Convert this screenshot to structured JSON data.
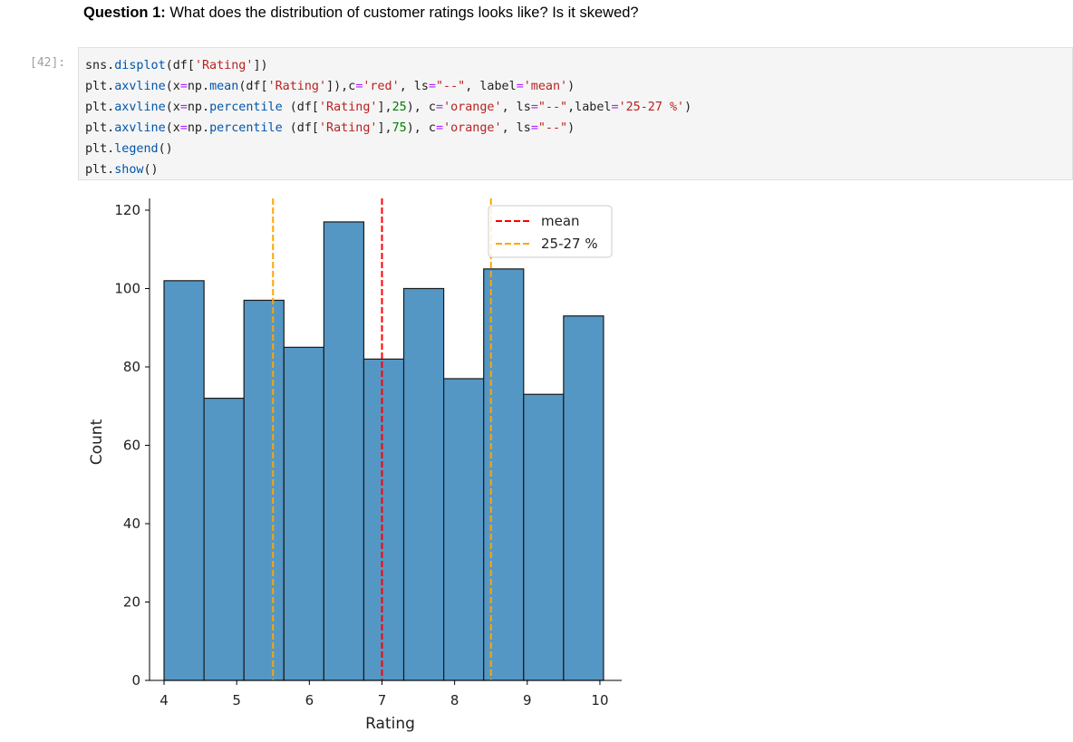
{
  "markdown": {
    "bold": "Question 1:",
    "rest": " What does the distribution of customer ratings looks like? Is it skewed?"
  },
  "cell": {
    "prompt": "[42]:",
    "lines": [
      [
        {
          "t": "sns.",
          "c": "k-var"
        },
        {
          "t": "displot",
          "c": "k-fn"
        },
        {
          "t": "(df[",
          "c": "k-var"
        },
        {
          "t": "'Rating'",
          "c": "k-str"
        },
        {
          "t": "])",
          "c": "k-var"
        }
      ],
      [
        {
          "t": "plt.",
          "c": "k-var"
        },
        {
          "t": "axvline",
          "c": "k-fn"
        },
        {
          "t": "(x",
          "c": "k-var"
        },
        {
          "t": "=",
          "c": "k-op"
        },
        {
          "t": "np.",
          "c": "k-var"
        },
        {
          "t": "mean",
          "c": "k-fn"
        },
        {
          "t": "(df[",
          "c": "k-var"
        },
        {
          "t": "'Rating'",
          "c": "k-str"
        },
        {
          "t": "]),c",
          "c": "k-var"
        },
        {
          "t": "=",
          "c": "k-op"
        },
        {
          "t": "'red'",
          "c": "k-str"
        },
        {
          "t": ", ls",
          "c": "k-var"
        },
        {
          "t": "=",
          "c": "k-op"
        },
        {
          "t": "\"--\"",
          "c": "k-str"
        },
        {
          "t": ", label",
          "c": "k-var"
        },
        {
          "t": "=",
          "c": "k-op"
        },
        {
          "t": "'mean'",
          "c": "k-str"
        },
        {
          "t": ")",
          "c": "k-var"
        }
      ],
      [
        {
          "t": "plt.",
          "c": "k-var"
        },
        {
          "t": "axvline",
          "c": "k-fn"
        },
        {
          "t": "(x",
          "c": "k-var"
        },
        {
          "t": "=",
          "c": "k-op"
        },
        {
          "t": "np.",
          "c": "k-var"
        },
        {
          "t": "percentile",
          "c": "k-fn"
        },
        {
          "t": " (df[",
          "c": "k-var"
        },
        {
          "t": "'Rating'",
          "c": "k-str"
        },
        {
          "t": "],",
          "c": "k-var"
        },
        {
          "t": "25",
          "c": "k-num"
        },
        {
          "t": "), c",
          "c": "k-var"
        },
        {
          "t": "=",
          "c": "k-op"
        },
        {
          "t": "'orange'",
          "c": "k-str"
        },
        {
          "t": ", ls",
          "c": "k-var"
        },
        {
          "t": "=",
          "c": "k-op"
        },
        {
          "t": "\"--\"",
          "c": "k-str"
        },
        {
          "t": ",label",
          "c": "k-var"
        },
        {
          "t": "=",
          "c": "k-op"
        },
        {
          "t": "'25-27 %'",
          "c": "k-str"
        },
        {
          "t": ")",
          "c": "k-var"
        }
      ],
      [
        {
          "t": "plt.",
          "c": "k-var"
        },
        {
          "t": "axvline",
          "c": "k-fn"
        },
        {
          "t": "(x",
          "c": "k-var"
        },
        {
          "t": "=",
          "c": "k-op"
        },
        {
          "t": "np.",
          "c": "k-var"
        },
        {
          "t": "percentile",
          "c": "k-fn"
        },
        {
          "t": " (df[",
          "c": "k-var"
        },
        {
          "t": "'Rating'",
          "c": "k-str"
        },
        {
          "t": "],",
          "c": "k-var"
        },
        {
          "t": "75",
          "c": "k-num"
        },
        {
          "t": "), c",
          "c": "k-var"
        },
        {
          "t": "=",
          "c": "k-op"
        },
        {
          "t": "'orange'",
          "c": "k-str"
        },
        {
          "t": ", ls",
          "c": "k-var"
        },
        {
          "t": "=",
          "c": "k-op"
        },
        {
          "t": "\"--\"",
          "c": "k-str"
        },
        {
          "t": ")",
          "c": "k-var"
        }
      ],
      [
        {
          "t": "plt.",
          "c": "k-var"
        },
        {
          "t": "legend",
          "c": "k-fn"
        },
        {
          "t": "()",
          "c": "k-var"
        }
      ],
      [
        {
          "t": "plt.",
          "c": "k-var"
        },
        {
          "t": "show",
          "c": "k-fn"
        },
        {
          "t": "()",
          "c": "k-var"
        }
      ]
    ]
  },
  "chart_data": {
    "type": "bar",
    "xlabel": "Rating",
    "ylabel": "Count",
    "xlim": [
      3.8,
      10.3
    ],
    "ylim": [
      0,
      123
    ],
    "xticks": [
      "4",
      "5",
      "6",
      "7",
      "8",
      "9",
      "10"
    ],
    "yticks": [
      "0",
      "20",
      "40",
      "60",
      "80",
      "100",
      "120"
    ],
    "bins": [
      {
        "x0": 4.0,
        "x1": 4.55,
        "count": 102
      },
      {
        "x0": 4.55,
        "x1": 5.1,
        "count": 72
      },
      {
        "x0": 5.1,
        "x1": 5.65,
        "count": 97
      },
      {
        "x0": 5.65,
        "x1": 6.2,
        "count": 85
      },
      {
        "x0": 6.2,
        "x1": 6.75,
        "count": 117
      },
      {
        "x0": 6.75,
        "x1": 7.3,
        "count": 82
      },
      {
        "x0": 7.3,
        "x1": 7.85,
        "count": 100
      },
      {
        "x0": 7.85,
        "x1": 8.4,
        "count": 77
      },
      {
        "x0": 8.4,
        "x1": 8.95,
        "count": 105
      },
      {
        "x0": 8.95,
        "x1": 9.5,
        "count": 73
      },
      {
        "x0": 9.5,
        "x1": 10.05,
        "count": 93
      }
    ],
    "bar_color": "#5497c5",
    "vlines": [
      {
        "x": 5.5,
        "color": "#ffa500",
        "label": "25-27 %"
      },
      {
        "x": 7.0,
        "color": "#ff0000",
        "label": "mean"
      },
      {
        "x": 8.5,
        "color": "#ffa500",
        "label": ""
      }
    ],
    "legend": [
      {
        "label": "mean",
        "color": "#ff0000"
      },
      {
        "label": "25-27 %",
        "color": "#ffa500"
      }
    ],
    "legend_placement": "top-right"
  }
}
